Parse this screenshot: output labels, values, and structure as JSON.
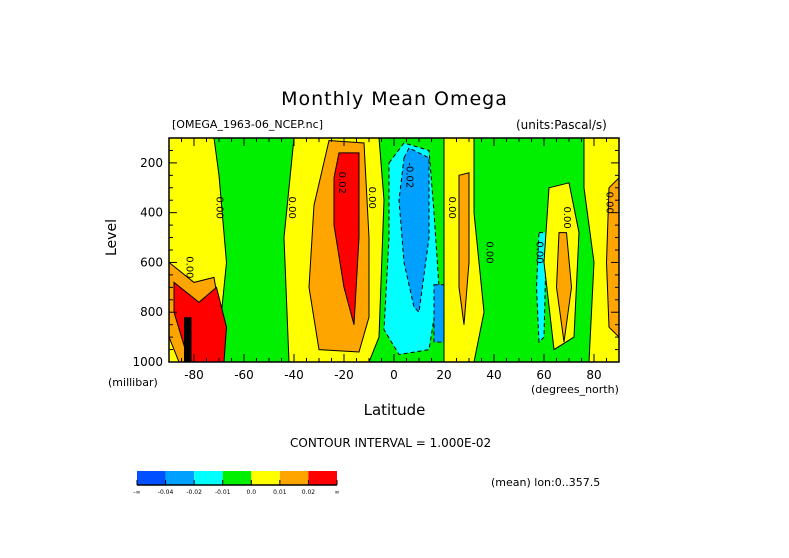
{
  "chart_data": {
    "type": "heatmap",
    "subtype": "filled-contour",
    "title": "Monthly Mean Omega",
    "file_label": "[OMEGA_1963-06_NCEP.nc]",
    "units_label": "(units:Pascal/s)",
    "xlabel": "Latitude",
    "x_unit_label": "(degrees_north)",
    "ylabel": "Level",
    "y_unit_label": "(millibar)",
    "xlim": [
      -90,
      90
    ],
    "ylim": [
      1000,
      100
    ],
    "x_ticks": [
      -80,
      -60,
      -40,
      -20,
      0,
      20,
      40,
      60,
      80
    ],
    "x_tick_labels": [
      "-80",
      "-60",
      "-40",
      "-20",
      "0",
      "20",
      "40",
      "60",
      "80"
    ],
    "y_ticks": [
      200,
      400,
      600,
      800,
      1000
    ],
    "y_tick_labels": [
      "200",
      "400",
      "600",
      "800",
      "1000"
    ],
    "contour_interval_label": "CONTOUR INTERVAL = 1.000E-02",
    "averaging_label": "(mean) lon:0..357.5",
    "levels": [
      {
        "name": "lt-0.04",
        "color": "#0050ff"
      },
      {
        "name": "-0.04..-0.02",
        "color": "#00a0ff"
      },
      {
        "name": "-0.02..-0.01",
        "color": "#00ffff"
      },
      {
        "name": "-0.01..0.0",
        "color": "#00f000"
      },
      {
        "name": "0.0..0.01",
        "color": "#ffff00"
      },
      {
        "name": "0.01..0.02",
        "color": "#ffa500"
      },
      {
        "name": "gt-0.02",
        "color": "#ff0000"
      }
    ],
    "colorbar_labels": [
      "-∞",
      "-0.04",
      "-0.02",
      "-0.01",
      "0.0",
      "0.01",
      "0.02",
      "∞"
    ],
    "contour_labels": [
      {
        "text": "0.00",
        "lat": -83,
        "lev": 620
      },
      {
        "text": "0.00",
        "lat": -71,
        "lev": 380
      },
      {
        "text": "0.00",
        "lat": -42,
        "lev": 380
      },
      {
        "text": "0.02",
        "lat": -22,
        "lev": 280
      },
      {
        "text": "0.00",
        "lat": -10,
        "lev": 340
      },
      {
        "text": "-0.02",
        "lat": 5,
        "lev": 250
      },
      {
        "text": "0.00",
        "lat": 22,
        "lev": 380
      },
      {
        "text": "0.00",
        "lat": 37,
        "lev": 560
      },
      {
        "text": "0.00",
        "lat": 57,
        "lev": 560
      },
      {
        "text": "0.00",
        "lat": 68,
        "lev": 420
      },
      {
        "text": "0.00",
        "lat": 85,
        "lev": 360
      }
    ],
    "regions": [
      {
        "level": 4,
        "desc": "positive band SH mid-lat",
        "poly": [
          [
            -90,
            100
          ],
          [
            -72,
            100
          ],
          [
            -70,
            250
          ],
          [
            -67,
            600
          ],
          [
            -70,
            900
          ],
          [
            -76,
            1000
          ],
          [
            -90,
            1000
          ]
        ]
      },
      {
        "level": 5,
        "poly": [
          [
            -90,
            600
          ],
          [
            -80,
            680
          ],
          [
            -72,
            660
          ],
          [
            -68,
            900
          ],
          [
            -70,
            1000
          ],
          [
            -86,
            1000
          ],
          [
            -90,
            900
          ]
        ]
      },
      {
        "level": 6,
        "poly": [
          [
            -88,
            680
          ],
          [
            -78,
            760
          ],
          [
            -71,
            700
          ],
          [
            -67,
            860
          ],
          [
            -68,
            1000
          ],
          [
            -82,
            1000
          ],
          [
            -88,
            800
          ]
        ]
      },
      {
        "level": 4,
        "poly": [
          [
            -40,
            100
          ],
          [
            -6,
            100
          ],
          [
            -4,
            350
          ],
          [
            -6,
            900
          ],
          [
            -10,
            1000
          ],
          [
            -42,
            1000
          ],
          [
            -44,
            500
          ]
        ]
      },
      {
        "level": 5,
        "poly": [
          [
            -32,
            370
          ],
          [
            -26,
            110
          ],
          [
            -12,
            120
          ],
          [
            -10,
            500
          ],
          [
            -10,
            820
          ],
          [
            -14,
            960
          ],
          [
            -30,
            950
          ],
          [
            -34,
            700
          ]
        ]
      },
      {
        "level": 6,
        "poly": [
          [
            -24,
            260
          ],
          [
            -22,
            160
          ],
          [
            -14,
            160
          ],
          [
            -14,
            500
          ],
          [
            -16,
            850
          ],
          [
            -20,
            700
          ],
          [
            -24,
            450
          ]
        ]
      },
      {
        "level": 2,
        "poly": [
          [
            -2,
            200
          ],
          [
            4,
            120
          ],
          [
            14,
            150
          ],
          [
            16,
            400
          ],
          [
            18,
            700
          ],
          [
            14,
            950
          ],
          [
            2,
            970
          ],
          [
            -4,
            870
          ],
          [
            -2,
            500
          ]
        ]
      },
      {
        "level": 1,
        "poly": [
          [
            4,
            180
          ],
          [
            6,
            140
          ],
          [
            14,
            180
          ],
          [
            14,
            500
          ],
          [
            10,
            800
          ],
          [
            8,
            780
          ],
          [
            4,
            600
          ],
          [
            2,
            350
          ]
        ]
      },
      {
        "level": 1,
        "poly": [
          [
            16,
            690
          ],
          [
            20,
            690
          ],
          [
            20,
            920
          ],
          [
            16,
            920
          ]
        ]
      },
      {
        "level": 4,
        "poly": [
          [
            20,
            100
          ],
          [
            32,
            100
          ],
          [
            32,
            400
          ],
          [
            36,
            800
          ],
          [
            32,
            1000
          ],
          [
            20,
            1000
          ],
          [
            20,
            500
          ]
        ]
      },
      {
        "level": 5,
        "poly": [
          [
            26,
            250
          ],
          [
            30,
            240
          ],
          [
            30,
            600
          ],
          [
            28,
            850
          ],
          [
            26,
            700
          ]
        ]
      },
      {
        "level": 2,
        "poly": [
          [
            58,
            480
          ],
          [
            61,
            480
          ],
          [
            60,
            900
          ],
          [
            58,
            920
          ],
          [
            57,
            700
          ]
        ]
      },
      {
        "level": 4,
        "poly": [
          [
            62,
            300
          ],
          [
            70,
            280
          ],
          [
            74,
            480
          ],
          [
            72,
            900
          ],
          [
            64,
            950
          ],
          [
            60,
            600
          ]
        ]
      },
      {
        "level": 5,
        "poly": [
          [
            66,
            480
          ],
          [
            69,
            480
          ],
          [
            71,
            700
          ],
          [
            68,
            920
          ],
          [
            65,
            700
          ]
        ]
      },
      {
        "level": 4,
        "poly": [
          [
            76,
            100
          ],
          [
            90,
            100
          ],
          [
            90,
            1000
          ],
          [
            78,
            1000
          ],
          [
            80,
            600
          ],
          [
            76,
            300
          ]
        ]
      },
      {
        "level": 5,
        "poly": [
          [
            86,
            300
          ],
          [
            90,
            260
          ],
          [
            90,
            900
          ],
          [
            86,
            860
          ],
          [
            85,
            600
          ]
        ]
      }
    ]
  }
}
